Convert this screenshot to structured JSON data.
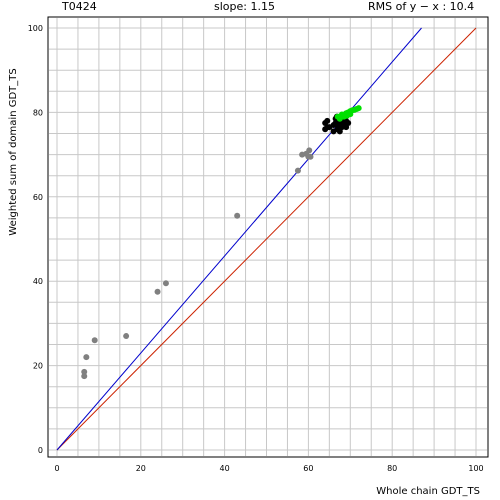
{
  "header": {
    "title": "T0424",
    "slope": "slope: 1.15",
    "rms": "RMS of  y − x : 10.4"
  },
  "chart_data": {
    "type": "scatter",
    "xlabel": "Whole chain GDT_TS",
    "ylabel": "Weighted sum of domain GDT_TS",
    "xlim": [
      0,
      100
    ],
    "ylim": [
      0,
      100
    ],
    "xticks": [
      "0",
      "20",
      "40",
      "60",
      "80",
      "100"
    ],
    "yticks": [
      "0",
      "20",
      "40",
      "60",
      "80",
      "100"
    ],
    "grid": true,
    "lines": [
      {
        "kind": "identity",
        "color": "#cc2200",
        "from": [
          0,
          0
        ],
        "to": [
          100,
          100
        ]
      },
      {
        "kind": "fit",
        "color": "#0000cc",
        "from": [
          0,
          0
        ],
        "to": [
          87,
          100
        ]
      }
    ],
    "series": [
      {
        "color": "#808080",
        "points": [
          [
            6.5,
            17.5
          ],
          [
            6.5,
            18.5
          ],
          [
            7,
            22
          ],
          [
            9,
            26
          ],
          [
            16.5,
            27
          ],
          [
            24,
            37.5
          ],
          [
            26,
            39.5
          ],
          [
            43,
            55.5
          ],
          [
            57.5,
            66.2
          ],
          [
            58.5,
            70
          ],
          [
            59.5,
            70.2
          ],
          [
            60,
            69.5
          ],
          [
            60.2,
            71
          ],
          [
            60.5,
            69.5
          ]
        ]
      },
      {
        "color": "#000000",
        "points": [
          [
            64,
            76
          ],
          [
            64,
            77.5
          ],
          [
            64.5,
            76.5
          ],
          [
            64.5,
            78
          ],
          [
            65,
            76.5
          ],
          [
            66,
            75.5
          ],
          [
            66,
            77
          ],
          [
            66.5,
            77.5
          ],
          [
            66.5,
            78.5
          ],
          [
            67,
            76
          ],
          [
            67,
            77
          ],
          [
            67.5,
            75.5
          ],
          [
            67.5,
            77.5
          ],
          [
            68,
            76.5
          ],
          [
            68,
            78
          ],
          [
            68.5,
            77
          ],
          [
            68.5,
            77.8
          ],
          [
            69,
            76.5
          ],
          [
            69,
            78
          ],
          [
            69.5,
            77.5
          ],
          [
            66.8,
            79
          ],
          [
            68.2,
            79.2
          ]
        ]
      },
      {
        "color": "#00e000",
        "points": [
          [
            67,
            79
          ],
          [
            67.5,
            78.5
          ],
          [
            68,
            79.5
          ],
          [
            68.5,
            79
          ],
          [
            69,
            79.8
          ],
          [
            69.5,
            80
          ],
          [
            70,
            80.3
          ],
          [
            70.5,
            80.5
          ],
          [
            71,
            80.6
          ],
          [
            71.5,
            80.8
          ],
          [
            72,
            81
          ],
          [
            69.2,
            79.2
          ],
          [
            70,
            79.6
          ]
        ]
      }
    ]
  }
}
